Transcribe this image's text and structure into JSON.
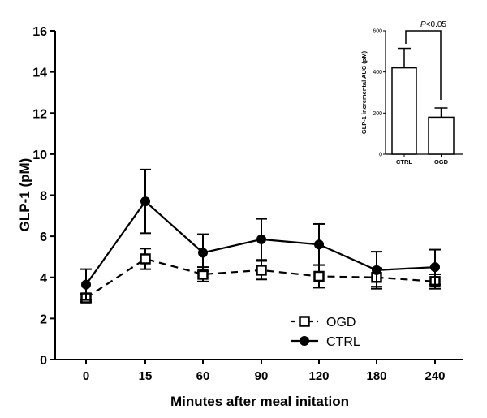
{
  "chart_data": [
    {
      "type": "line",
      "title": "",
      "xlabel": "Minutes after meal initation",
      "ylabel": "GLP-1 (pM)",
      "categories": [
        "0",
        "15",
        "60",
        "90",
        "120",
        "180",
        "240"
      ],
      "ylim": [
        0,
        16
      ],
      "yticks": [
        "0",
        "2",
        "4",
        "6",
        "8",
        "10",
        "12",
        "14",
        "16"
      ],
      "grid": false,
      "legend_position": "bottom-right",
      "series": [
        {
          "name": "OGD",
          "style": "dashed",
          "marker": "open-square",
          "values": [
            3.0,
            4.9,
            4.15,
            4.35,
            4.05,
            4.0,
            3.8
          ],
          "errors": [
            0.2,
            0.5,
            0.35,
            0.45,
            0.55,
            0.45,
            0.35
          ]
        },
        {
          "name": "CTRL",
          "style": "solid",
          "marker": "filled-circle",
          "values": [
            3.65,
            7.7,
            5.2,
            5.85,
            5.6,
            4.35,
            4.5
          ],
          "errors": [
            0.75,
            1.55,
            0.9,
            1.0,
            1.0,
            0.9,
            0.85
          ]
        }
      ]
    },
    {
      "type": "bar",
      "title": "",
      "xlabel": "",
      "ylabel": "GLP-1 incremental AUC (pM)",
      "categories": [
        "CTRL",
        "OGD"
      ],
      "values": [
        420,
        180
      ],
      "errors": [
        95,
        45
      ],
      "ylim": [
        0,
        600
      ],
      "yticks": [
        "0",
        "200",
        "400",
        "600"
      ],
      "annotation": {
        "label": "P<0.05",
        "p_italic": "P",
        "rest": "<0.05"
      }
    }
  ]
}
